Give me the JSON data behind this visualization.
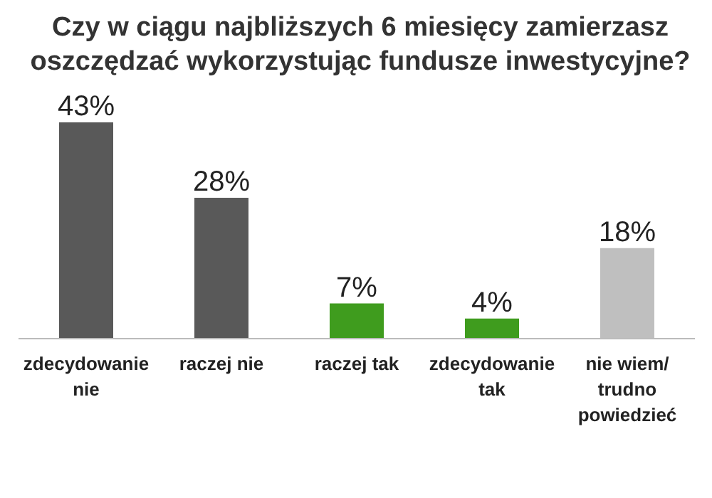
{
  "chart_data": {
    "type": "bar",
    "title": "Czy w ciągu najbliższych 6 miesięcy zamierzasz oszczędzać wykorzystując fundusze inwestycyjne?",
    "categories": [
      "zdecydowanie nie",
      "raczej nie",
      "raczej tak",
      "zdecydowanie tak",
      "nie wiem/ trudno powiedzieć"
    ],
    "values": [
      43,
      28,
      7,
      4,
      18
    ],
    "value_labels": [
      "43%",
      "28%",
      "7%",
      "4%",
      "18%"
    ],
    "colors": [
      "#595959",
      "#595959",
      "#3f9c1e",
      "#3f9c1e",
      "#bfbfbf"
    ]
  }
}
